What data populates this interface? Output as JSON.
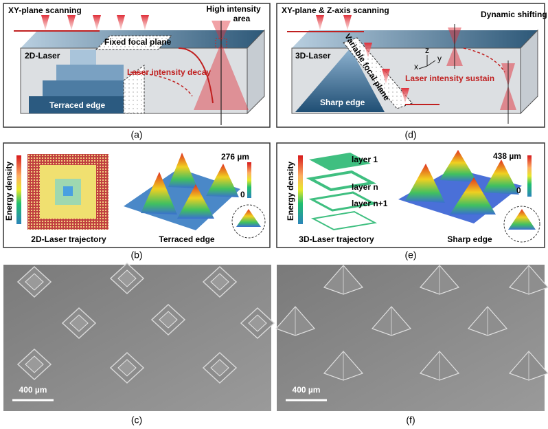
{
  "a": {
    "title": "XY-plane scanning",
    "high_intensity": "High intensity",
    "area": "area",
    "laser": "2D-Laser",
    "focal_plane": "Fixed focal plane",
    "decay": "Laser intensity decay",
    "edge": "Terraced edge",
    "caption": "(a)"
  },
  "d": {
    "title": "XY-plane & Z-axis scanning",
    "shifting": "Dynamic shifting",
    "laser": "3D-Laser",
    "focal_plane": "Variable focal plane",
    "sustain": "Laser intensity sustain",
    "edge": "Sharp edge",
    "axis_z": "z",
    "axis_y": "y",
    "axis_x": "x",
    "caption": "(d)"
  },
  "b": {
    "colorbar_label": "Energy density",
    "trajectory": "2D-Laser trajectory",
    "max": "276 µm",
    "min": "0",
    "edge": "Terraced edge",
    "caption": "(b)"
  },
  "e": {
    "colorbar_label": "Energy density",
    "layer_1": "layer 1",
    "layer_n": "layer n",
    "layer_n1": "layer n+1",
    "trajectory": "3D-Laser trajectory",
    "max": "438 µm",
    "min": "0",
    "edge": "Sharp edge",
    "caption": "(e)"
  },
  "c": {
    "scale_bar": "400 µm",
    "caption": "(c)"
  },
  "f": {
    "scale_bar": "400 µm",
    "caption": "(f)"
  }
}
